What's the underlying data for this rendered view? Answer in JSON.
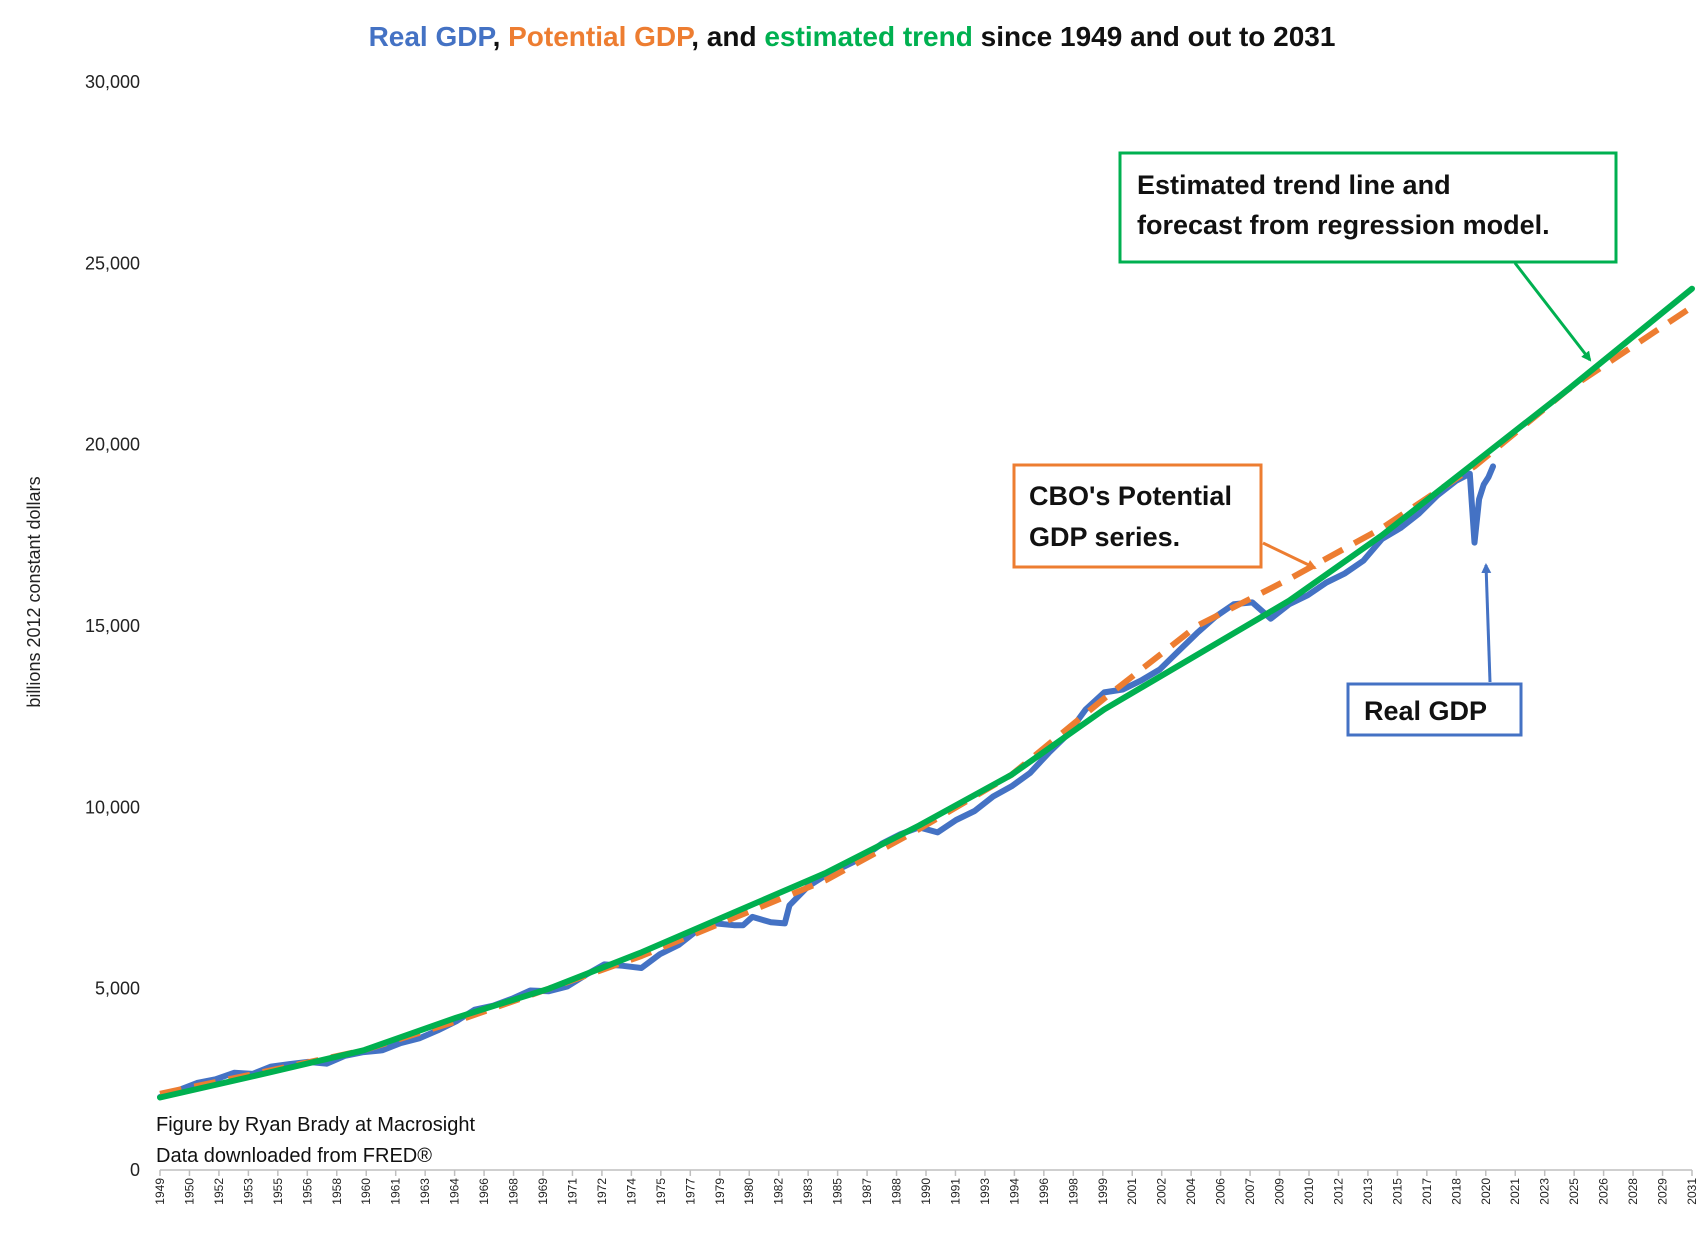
{
  "title": {
    "parts": [
      {
        "text": "Real GDP",
        "color": "#4472C4"
      },
      {
        "text": ", ",
        "color": "#111111"
      },
      {
        "text": "Potential GDP",
        "color": "#ED7D31"
      },
      {
        "text": ", and ",
        "color": "#111111"
      },
      {
        "text": "estimated trend",
        "color": "#00B050"
      },
      {
        "text": " since 1949 and out to 2031",
        "color": "#111111"
      }
    ]
  },
  "credits": {
    "line1": "Figure by Ryan Brady at Macrosight",
    "line2": "Data downloaded from FRED®"
  },
  "annotations": {
    "trend": {
      "line1": "Estimated trend line and",
      "line2": "forecast from regression model.",
      "color": "#00B050"
    },
    "potential": {
      "line1": "CBO's Potential",
      "line2": "GDP series.",
      "color": "#ED7D31"
    },
    "real": {
      "line1": "Real GDP",
      "color": "#4472C4"
    }
  },
  "chart_data": {
    "type": "line",
    "title": "Real GDP, Potential GDP, and estimated trend since 1949 and out to 2031",
    "ylabel": "billions 2012 constant dollars",
    "xlabel": "",
    "xlim": [
      1949,
      2031.75
    ],
    "ylim": [
      0,
      30000
    ],
    "yticks": [
      0,
      5000,
      10000,
      15000,
      20000,
      25000,
      30000
    ],
    "ytick_labels": [
      "0",
      "5,000",
      "10,000",
      "15,000",
      "20,000",
      "25,000",
      "30,000"
    ],
    "xtick_labels": [
      "1949",
      "1950",
      "1952",
      "1953",
      "1955",
      "1956",
      "1958",
      "1960",
      "1961",
      "1963",
      "1964",
      "1966",
      "1968",
      "1969",
      "1971",
      "1972",
      "1974",
      "1975",
      "1977",
      "1979",
      "1980",
      "1982",
      "1983",
      "1985",
      "1987",
      "1988",
      "1990",
      "1991",
      "1993",
      "1994",
      "1996",
      "1998",
      "1999",
      "2001",
      "2002",
      "2004",
      "2006",
      "2007",
      "2009",
      "2010",
      "2012",
      "2013",
      "2015",
      "2017",
      "2018",
      "2020",
      "2021",
      "2023",
      "2025",
      "2026",
      "2028",
      "2029",
      "2031"
    ],
    "grid": false,
    "legend": "none",
    "series": [
      {
        "name": "Real GDP",
        "color": "#4472C4",
        "x": [
          1949,
          1950,
          1951,
          1952,
          1953,
          1954,
          1955,
          1956,
          1957,
          1958,
          1959,
          1960,
          1961,
          1962,
          1963,
          1964,
          1965,
          1966,
          1967,
          1968,
          1969,
          1970,
          1971,
          1972,
          1973,
          1974,
          1975,
          1976,
          1977,
          1978,
          1979,
          1980,
          1980.5,
          1981,
          1982,
          1982.75,
          1983,
          1984,
          1985,
          1986,
          1987,
          1988,
          1989,
          1990,
          1991,
          1992,
          1993,
          1994,
          1995,
          1996,
          1997,
          1998,
          1999,
          2000,
          2001,
          2002,
          2003,
          2004,
          2005,
          2006,
          2007,
          2008,
          2009,
          2010,
          2011,
          2012,
          2013,
          2014,
          2015,
          2016,
          2017,
          2018,
          2019,
          2019.75,
          2020,
          2020.25,
          2020.5,
          2020.75,
          2021
        ],
        "y": [
          2010,
          2200,
          2400,
          2500,
          2680,
          2650,
          2850,
          2920,
          2980,
          2930,
          3150,
          3250,
          3300,
          3500,
          3630,
          3850,
          4100,
          4420,
          4530,
          4720,
          4950,
          4930,
          5060,
          5380,
          5670,
          5630,
          5570,
          5950,
          6200,
          6600,
          6800,
          6750,
          6750,
          6980,
          6830,
          6800,
          7300,
          7820,
          8140,
          8380,
          8630,
          9000,
          9260,
          9450,
          9310,
          9650,
          9900,
          10300,
          10580,
          10950,
          11500,
          12000,
          12700,
          13170,
          13250,
          13500,
          13800,
          14300,
          14800,
          15250,
          15600,
          15650,
          15200,
          15600,
          15850,
          16200,
          16450,
          16800,
          17400,
          17700,
          18100,
          18600,
          19000,
          19200,
          17300,
          18500,
          18900,
          19100,
          19400
        ]
      },
      {
        "name": "Potential GDP",
        "color": "#ED7D31",
        "x": [
          1949,
          1955,
          1960,
          1965,
          1970,
          1975,
          1980,
          1985,
          1990,
          1995,
          2000,
          2005,
          2010,
          2015,
          2020,
          2025,
          2031.75
        ],
        "y": [
          2100,
          2750,
          3300,
          4100,
          5000,
          5900,
          6950,
          8000,
          9400,
          10900,
          13000,
          15000,
          16300,
          17700,
          19400,
          21500,
          23800
        ]
      },
      {
        "name": "Estimated trend",
        "color": "#00B050",
        "x": [
          1949,
          1955,
          1960,
          1965,
          1970,
          1975,
          1980,
          1985,
          1990,
          1995,
          2000,
          2005,
          2010,
          2015,
          2020,
          2025,
          2031.75
        ],
        "y": [
          2000,
          2700,
          3300,
          4200,
          5000,
          6000,
          7100,
          8200,
          9500,
          10900,
          12700,
          14200,
          15700,
          17500,
          19500,
          21500,
          24300
        ]
      }
    ]
  }
}
